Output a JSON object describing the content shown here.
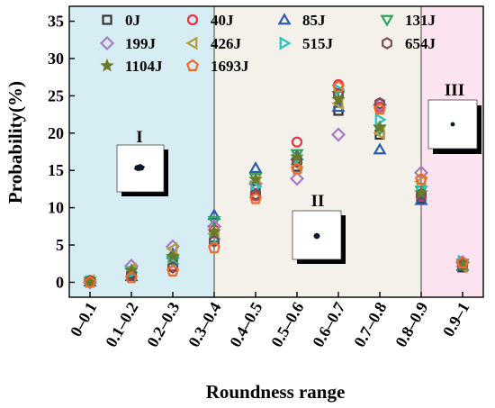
{
  "chart_data": {
    "type": "scatter",
    "xlabel": "Roundness range",
    "ylabel": "Probability(%)",
    "ylim": [
      -2,
      37
    ],
    "yticks": [
      0,
      5,
      10,
      15,
      20,
      25,
      30,
      35
    ],
    "categories": [
      "0–0.1",
      "0.1–0.2",
      "0.2–0.3",
      "0.3–0.4",
      "0.4–0.5",
      "0.5–0.6",
      "0.6–0.7",
      "0.7–0.8",
      "0.8–0.9",
      "0.9–1"
    ],
    "grid": false,
    "legend_position": "top",
    "regions": [
      {
        "label": "I",
        "from": -0.5,
        "to": 3.0,
        "color": "#d6eef3"
      },
      {
        "label": "II",
        "from": 3.0,
        "to": 8.0,
        "color": "#f4f0ea"
      },
      {
        "label": "III",
        "from": 8.0,
        "to": 9.5,
        "color": "#fbe3ef"
      }
    ],
    "series": [
      {
        "name": "0J",
        "marker": "square",
        "color": "#333333",
        "values": [
          0.1,
          1.2,
          3.0,
          6.0,
          12.5,
          15.5,
          23.0,
          19.8,
          11.2,
          2.0
        ]
      },
      {
        "name": "40J",
        "marker": "circle",
        "color": "#e8304a",
        "values": [
          0.2,
          1.0,
          2.2,
          7.0,
          11.6,
          18.8,
          26.5,
          23.5,
          11.5,
          2.3
        ]
      },
      {
        "name": "85J",
        "marker": "triangle-up",
        "color": "#2a5db0",
        "values": [
          0.1,
          0.8,
          3.8,
          9.0,
          15.3,
          17.0,
          23.5,
          17.8,
          11.0,
          2.2
        ]
      },
      {
        "name": "131J",
        "marker": "triangle-down",
        "color": "#2ca45a",
        "values": [
          0.1,
          1.5,
          3.0,
          8.2,
          14.0,
          17.2,
          25.0,
          20.5,
          12.3,
          2.5
        ]
      },
      {
        "name": "199J",
        "marker": "diamond",
        "color": "#a77cc2",
        "values": [
          0.0,
          2.2,
          4.8,
          7.5,
          13.2,
          13.9,
          19.8,
          23.8,
          14.7,
          2.7
        ]
      },
      {
        "name": "426J",
        "marker": "triangle-left",
        "color": "#b89a3e",
        "values": [
          0.2,
          1.8,
          4.5,
          6.5,
          13.5,
          15.8,
          24.0,
          20.0,
          13.5,
          2.1
        ]
      },
      {
        "name": "515J",
        "marker": "triangle-right",
        "color": "#22c5c0",
        "values": [
          0.1,
          1.3,
          2.5,
          5.8,
          12.8,
          16.5,
          25.8,
          21.8,
          12.8,
          2.8
        ]
      },
      {
        "name": "654J",
        "marker": "hexagon",
        "color": "#7a4a52",
        "values": [
          0.2,
          1.0,
          2.0,
          5.5,
          11.8,
          16.2,
          25.2,
          24.0,
          11.8,
          2.4
        ]
      },
      {
        "name": "1104J",
        "marker": "star",
        "color": "#6b7a2a",
        "values": [
          0.1,
          1.6,
          3.5,
          6.8,
          13.8,
          16.8,
          24.5,
          20.8,
          12.0,
          2.3
        ]
      },
      {
        "name": "1693J",
        "marker": "pentagon",
        "color": "#f06a2a",
        "values": [
          0.0,
          0.6,
          1.5,
          4.6,
          11.2,
          15.2,
          26.2,
          23.2,
          13.8,
          2.6
        ]
      }
    ]
  }
}
